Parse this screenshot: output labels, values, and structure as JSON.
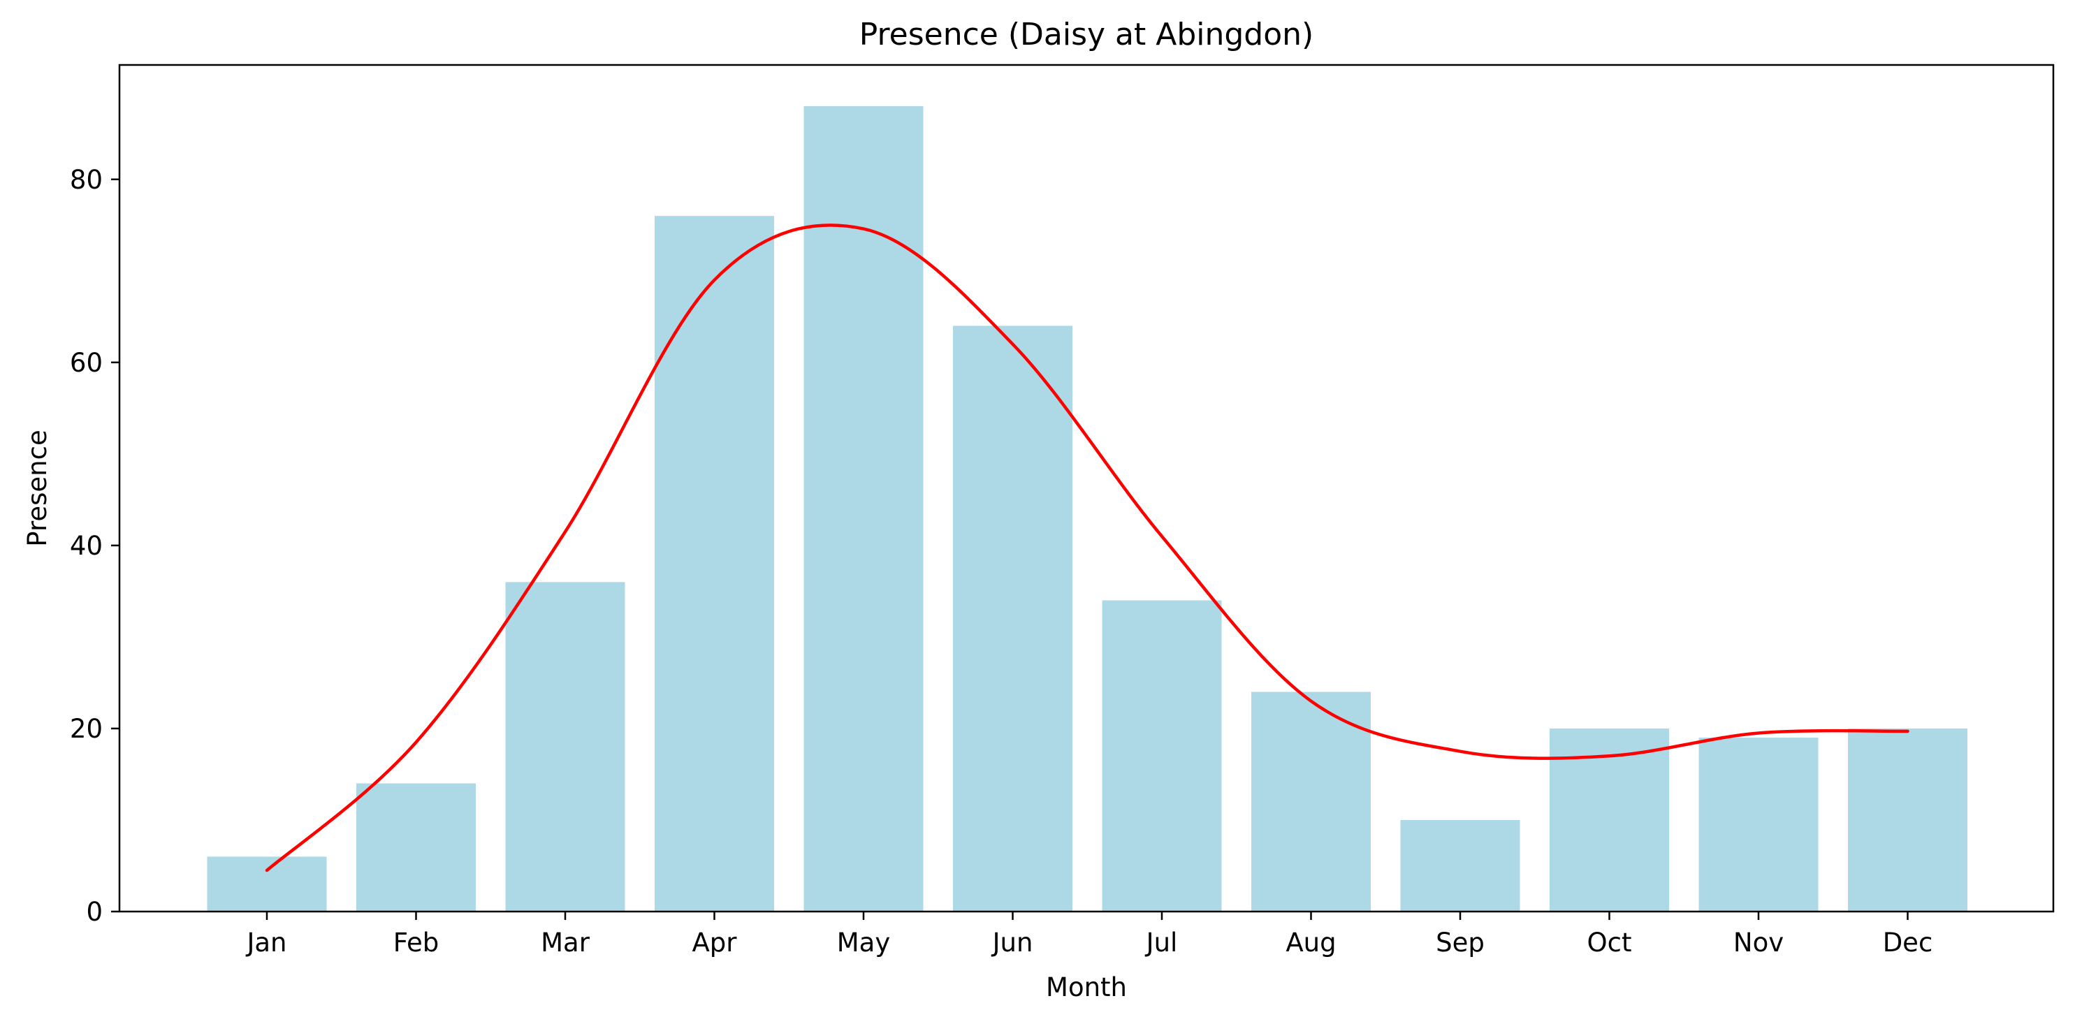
{
  "chart_data": {
    "type": "bar",
    "title": "Presence (Daisy at Abingdon)",
    "xlabel": "Month",
    "ylabel": "Presence",
    "categories": [
      "Jan",
      "Feb",
      "Mar",
      "Apr",
      "May",
      "Jun",
      "Jul",
      "Aug",
      "Sep",
      "Oct",
      "Nov",
      "Dec"
    ],
    "values": [
      6,
      14,
      36,
      76,
      88,
      64,
      34,
      24,
      10,
      20,
      19,
      20
    ],
    "smoothed_line": [
      4.5,
      18.5,
      41.5,
      69,
      74.6,
      62,
      41,
      23,
      17.5,
      17,
      19.5,
      19.7
    ],
    "ylim": [
      0,
      92.5
    ],
    "yticks": [
      0,
      20,
      40,
      60,
      80
    ],
    "grid": false,
    "bar_color": "#add8e6",
    "line_color": "#ff0000"
  }
}
